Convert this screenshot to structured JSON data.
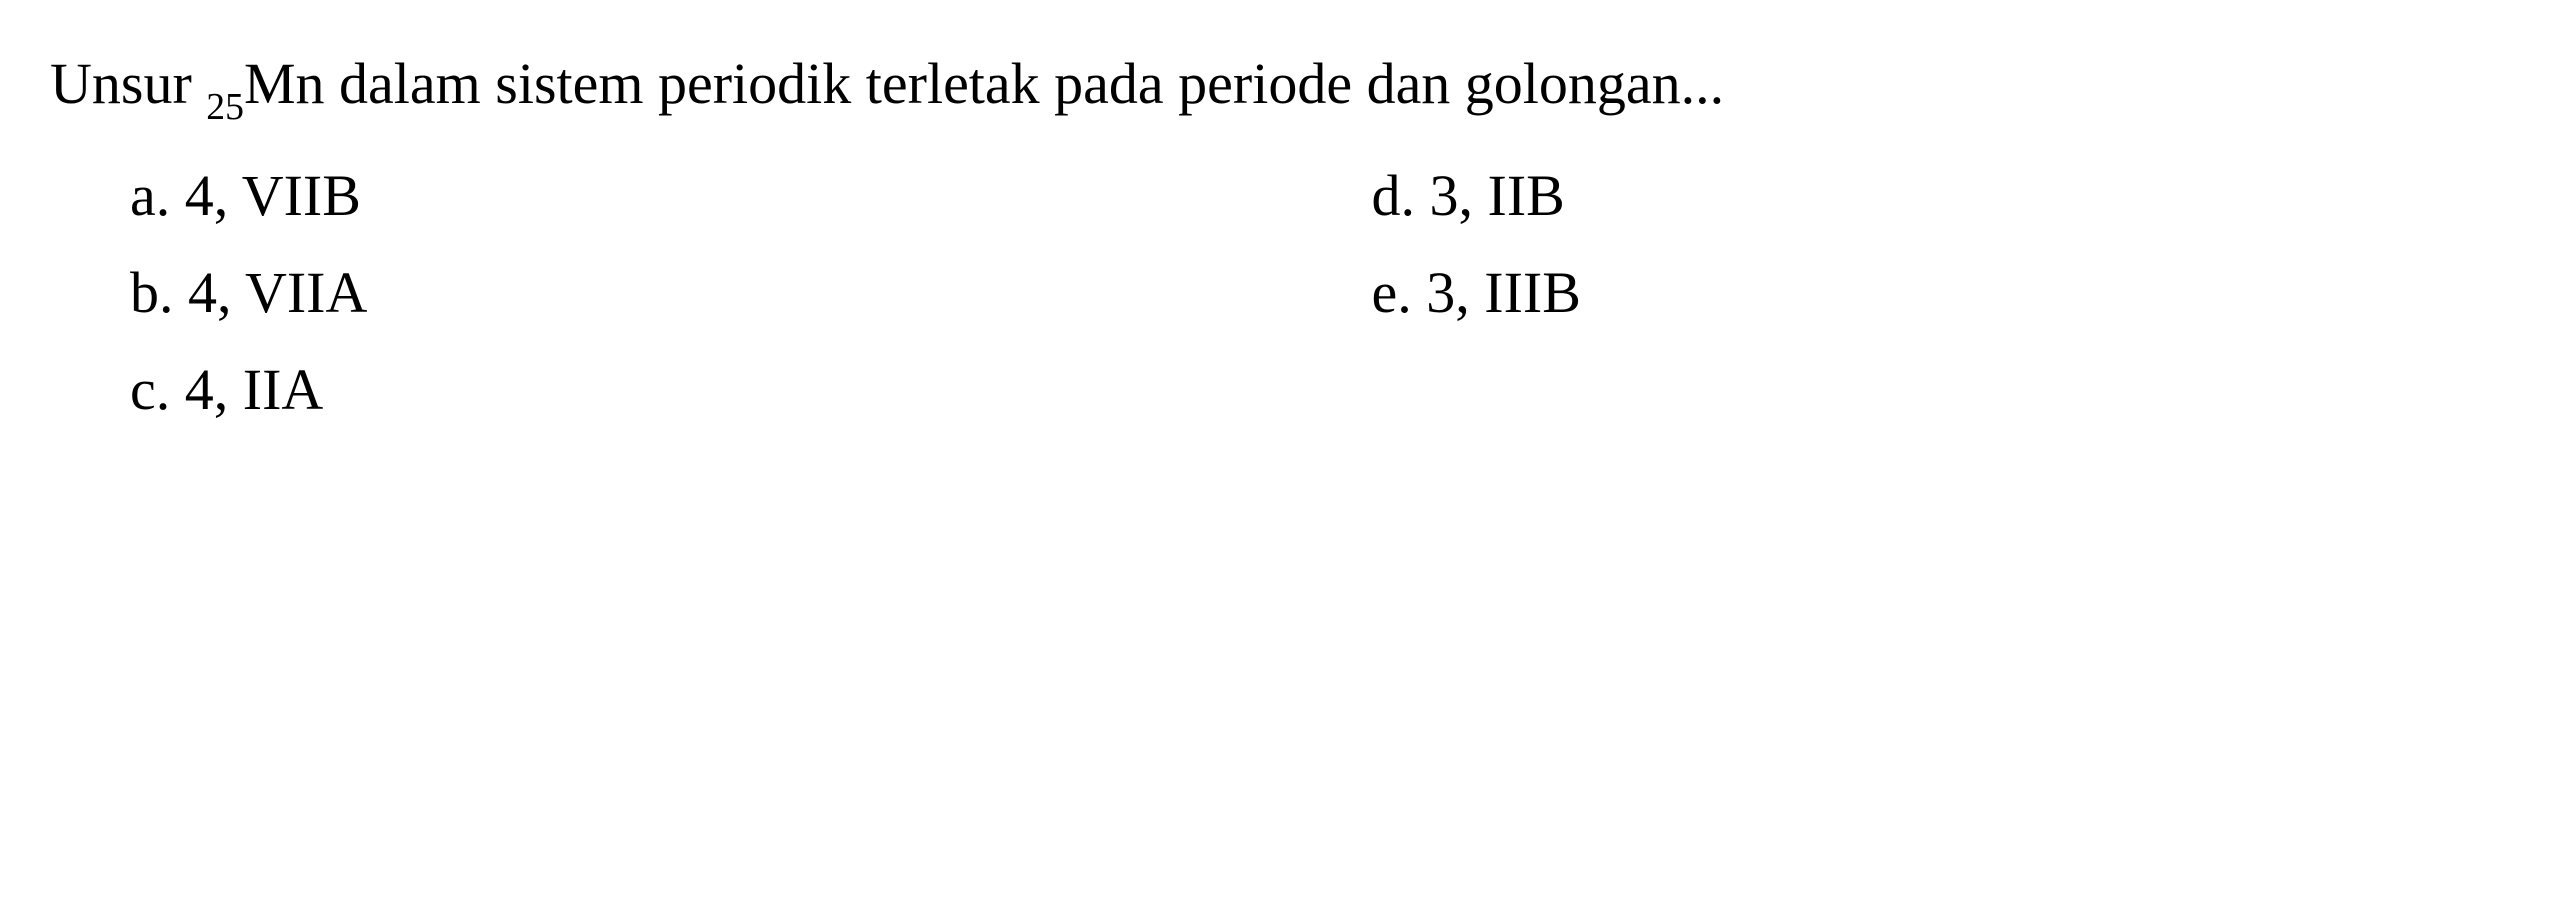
{
  "question": {
    "text_part1": "Unsur ",
    "subscript": "25",
    "element": "Mn",
    "text_part2": " dalam sistem periodik terletak pada periode dan golongan..."
  },
  "options": {
    "a": {
      "label": "a.",
      "value": "4, VIIB"
    },
    "b": {
      "label": "b.",
      "value": "4, VIIA"
    },
    "c": {
      "label": "c.",
      "value": "4, IIA"
    },
    "d": {
      "label": "d.",
      "value": "3, IIB"
    },
    "e": {
      "label": "e.",
      "value": "3, IIIB"
    }
  },
  "styling": {
    "font_family": "Times New Roman",
    "font_size_pt": 44,
    "text_color": "#000000",
    "background_color": "#ffffff",
    "subscript_ratio": 0.65
  }
}
